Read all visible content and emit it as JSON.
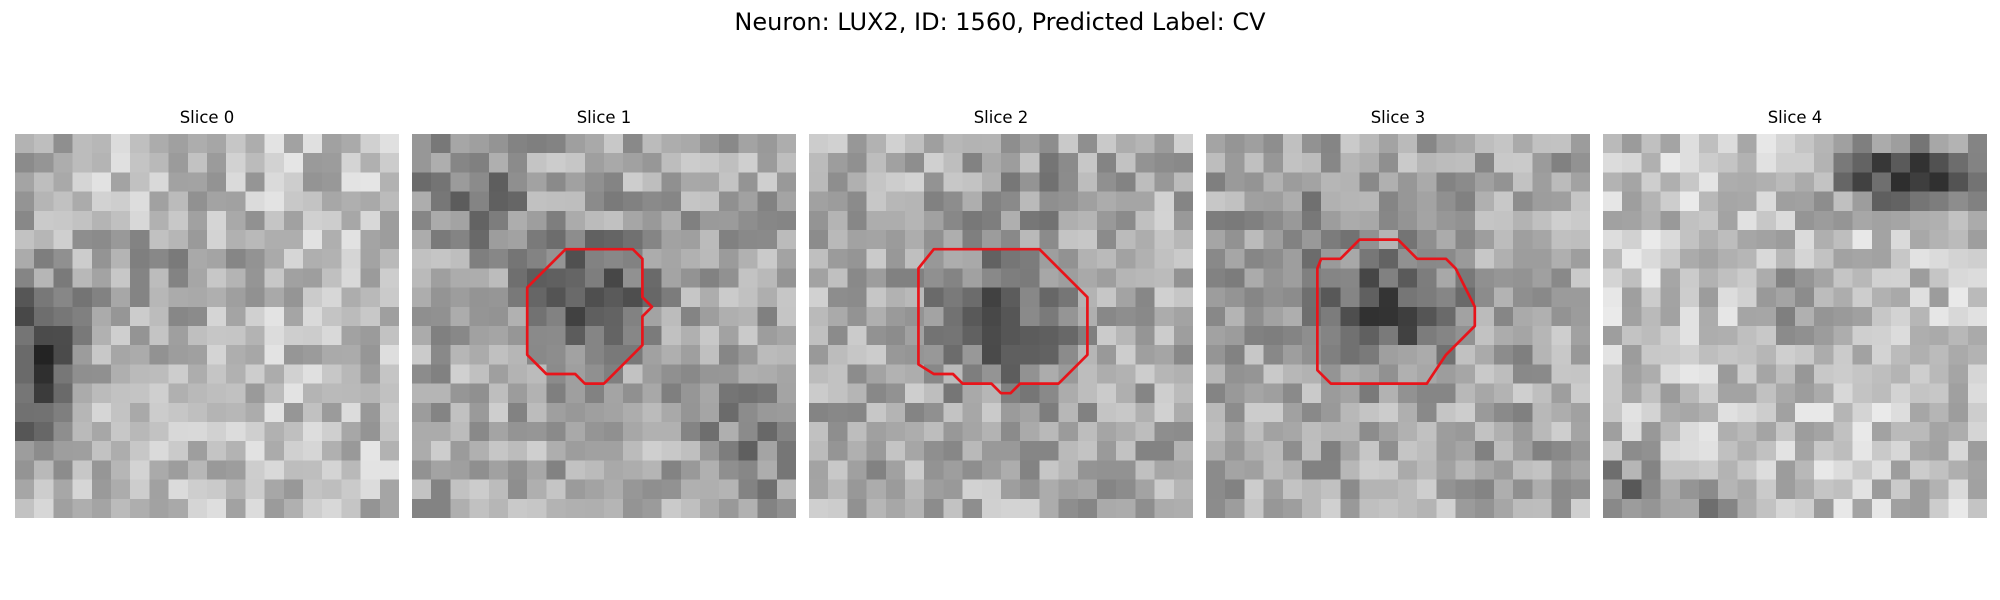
{
  "figure": {
    "title": "Neuron: LUX2, ID: 1560, Predicted Label: CV"
  },
  "contour_color": "#e8141a",
  "panels": [
    {
      "title": "Slice 0",
      "contour": []
    },
    {
      "title": "Slice 1",
      "contour": [
        [
          8.0,
          6.0
        ],
        [
          11.5,
          6.0
        ],
        [
          12.0,
          6.5
        ],
        [
          12.0,
          8.5
        ],
        [
          12.5,
          9.0
        ],
        [
          12.0,
          9.5
        ],
        [
          12.0,
          11.0
        ],
        [
          10.0,
          13.0
        ],
        [
          9.0,
          13.0
        ],
        [
          8.5,
          12.5
        ],
        [
          7.0,
          12.5
        ],
        [
          6.0,
          11.5
        ],
        [
          6.0,
          8.0
        ]
      ]
    },
    {
      "title": "Slice 2",
      "contour": [
        [
          6.5,
          6.0
        ],
        [
          12.0,
          6.0
        ],
        [
          14.5,
          8.5
        ],
        [
          14.5,
          11.5
        ],
        [
          13.0,
          13.0
        ],
        [
          11.0,
          13.0
        ],
        [
          10.5,
          13.5
        ],
        [
          10.0,
          13.5
        ],
        [
          9.5,
          13.0
        ],
        [
          8.0,
          13.0
        ],
        [
          7.5,
          12.5
        ],
        [
          6.5,
          12.5
        ],
        [
          5.7,
          12.0
        ],
        [
          5.7,
          7.0
        ]
      ]
    },
    {
      "title": "Slice 3",
      "contour": [
        [
          5.8,
          7.0
        ],
        [
          6.0,
          6.5
        ],
        [
          7.0,
          6.5
        ],
        [
          8.0,
          5.5
        ],
        [
          10.0,
          5.5
        ],
        [
          11.0,
          6.5
        ],
        [
          12.5,
          6.5
        ],
        [
          13.0,
          7.0
        ],
        [
          13.5,
          8.0
        ],
        [
          14.0,
          9.0
        ],
        [
          14.0,
          10.0
        ],
        [
          12.5,
          11.5
        ],
        [
          11.5,
          13.0
        ],
        [
          6.5,
          13.0
        ],
        [
          5.8,
          12.3
        ]
      ]
    },
    {
      "title": "Slice 4",
      "contour": []
    }
  ]
}
